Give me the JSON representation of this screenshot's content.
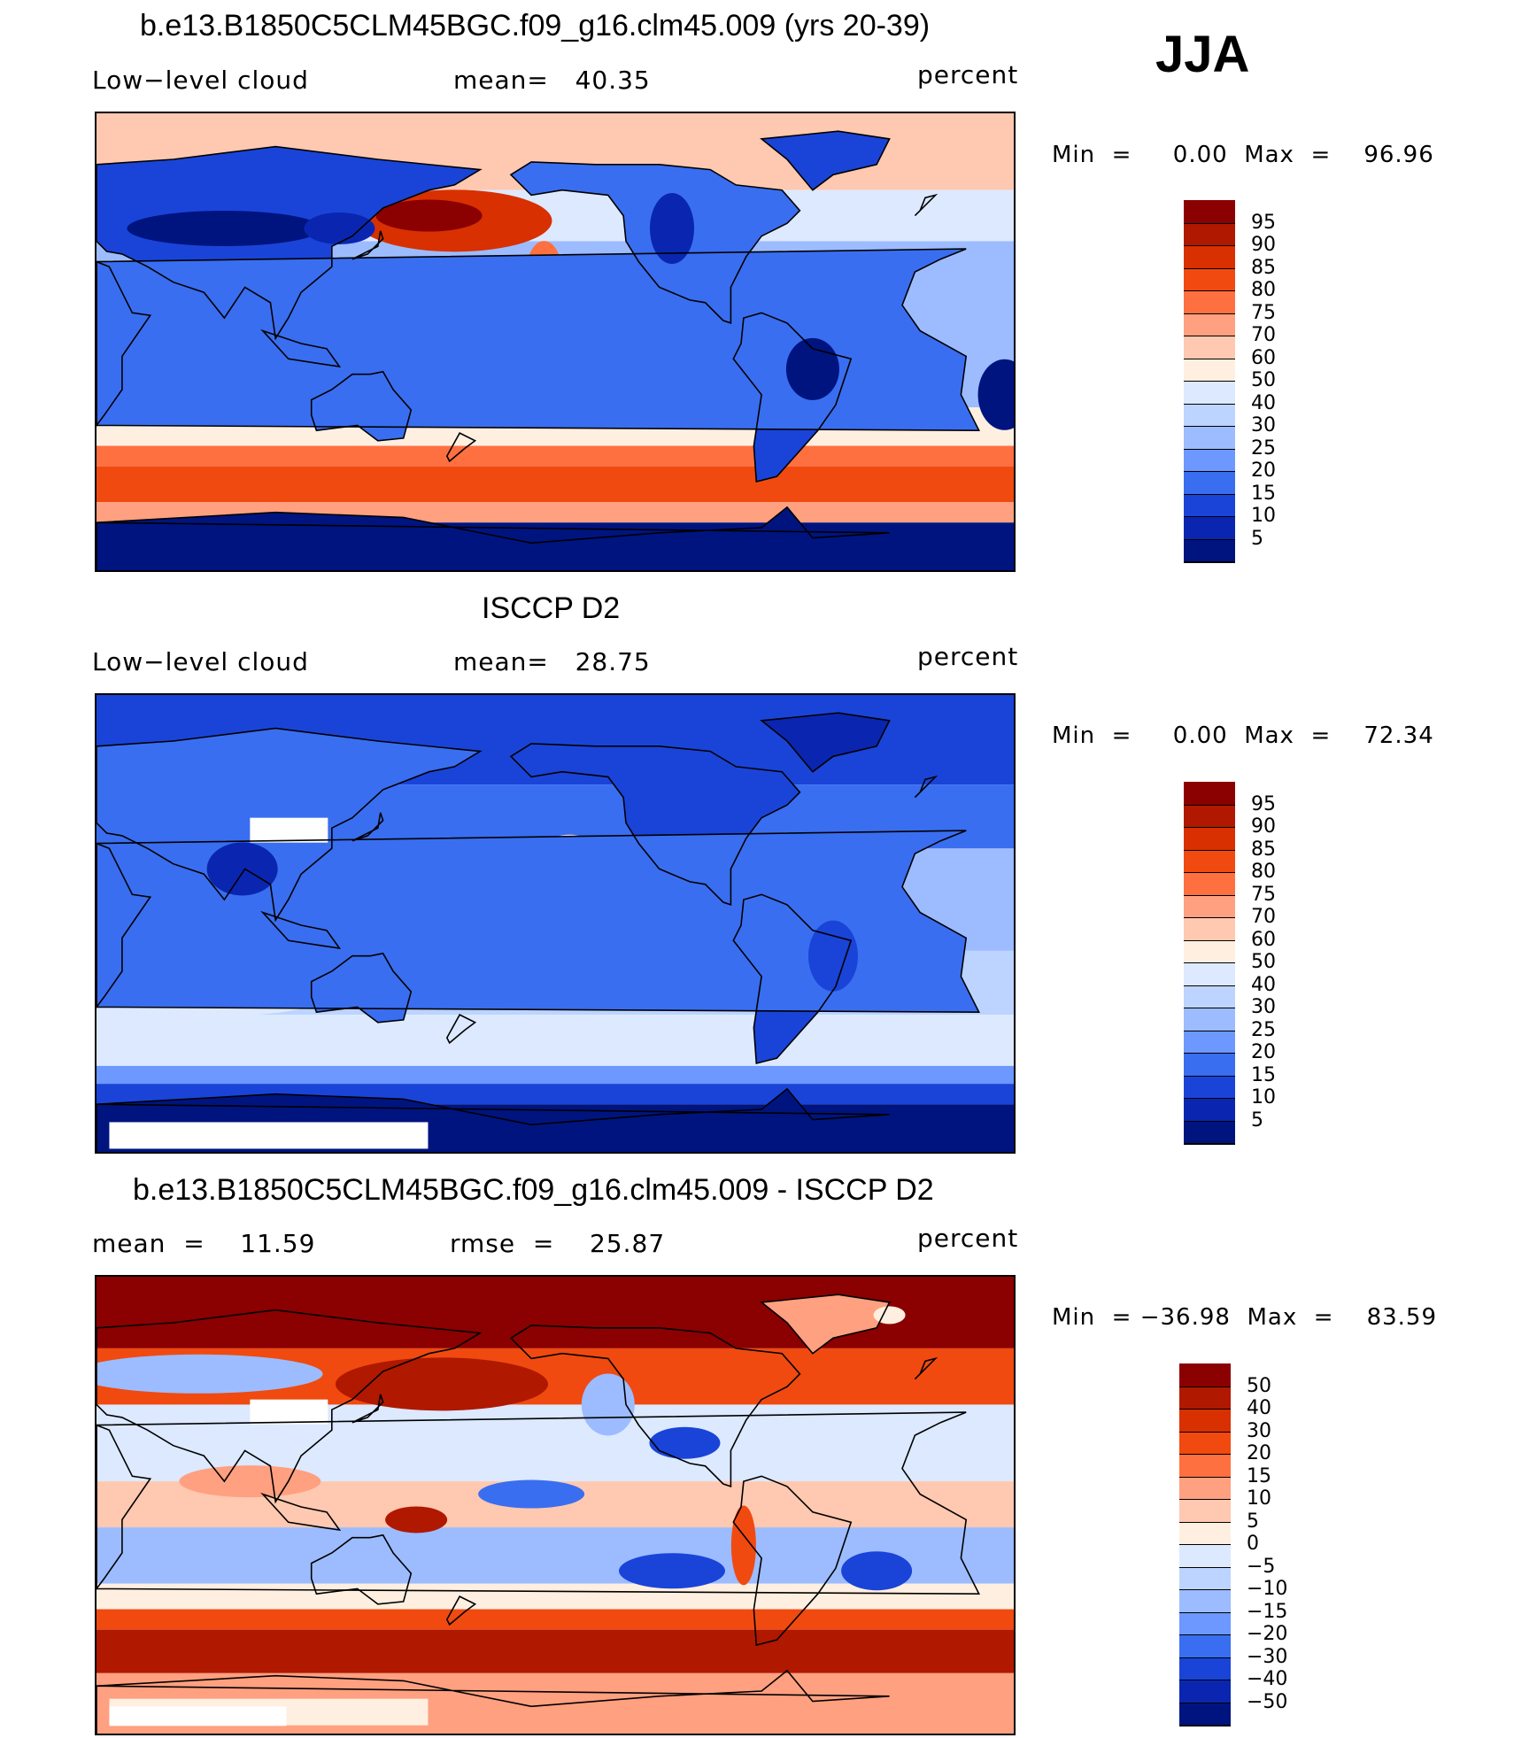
{
  "season": "JJA",
  "panels": [
    {
      "title": "b.e13.B1850C5CLM45BGC.f09_g16.clm45.009 (yrs 20-39)",
      "left_label": "Low−level cloud",
      "mid_label": "mean=   40.35",
      "right_label": "percent",
      "minmax": "Min  =     0.00  Max  =    96.96",
      "colorbar": {
        "labels": [
          "95",
          "90",
          "85",
          "80",
          "75",
          "70",
          "60",
          "50",
          "40",
          "30",
          "25",
          "20",
          "15",
          "10",
          "5"
        ],
        "colors": [
          "#8b0000",
          "#b01800",
          "#d83000",
          "#f04a10",
          "#ff7040",
          "#ffa080",
          "#ffc8b0",
          "#ffefe0",
          "#dce9ff",
          "#bcd4ff",
          "#9cbcff",
          "#6c98ff",
          "#3a6ef0",
          "#1a44d8",
          "#0a26b0",
          "#001480"
        ]
      },
      "field": "model"
    },
    {
      "title": "ISCCP D2",
      "left_label": "Low−level cloud",
      "mid_label": "mean=   28.75",
      "right_label": "percent",
      "minmax": "Min  =     0.00  Max  =    72.34",
      "colorbar": {
        "labels": [
          "95",
          "90",
          "85",
          "80",
          "75",
          "70",
          "60",
          "50",
          "40",
          "30",
          "25",
          "20",
          "15",
          "10",
          "5"
        ],
        "colors": [
          "#8b0000",
          "#b01800",
          "#d83000",
          "#f04a10",
          "#ff7040",
          "#ffa080",
          "#ffc8b0",
          "#ffefe0",
          "#dce9ff",
          "#bcd4ff",
          "#9cbcff",
          "#6c98ff",
          "#3a6ef0",
          "#1a44d8",
          "#0a26b0",
          "#001480"
        ]
      },
      "field": "obs"
    },
    {
      "title": "b.e13.B1850C5CLM45BGC.f09_g16.clm45.009 - ISCCP D2",
      "left_label": "mean  =    11.59",
      "mid_label": "rmse  =    25.87",
      "right_label": "percent",
      "minmax": "Min  = −36.98  Max  =    83.59",
      "colorbar": {
        "labels": [
          "50",
          "40",
          "30",
          "20",
          "15",
          "10",
          "5",
          "0",
          "−5",
          "−10",
          "−15",
          "−20",
          "−30",
          "−40",
          "−50"
        ],
        "colors": [
          "#8b0000",
          "#b01800",
          "#d83000",
          "#f04a10",
          "#ff7040",
          "#ffa080",
          "#ffc8b0",
          "#ffefe0",
          "#dce9ff",
          "#bcd4ff",
          "#9cbcff",
          "#6c98ff",
          "#3a6ef0",
          "#1a44d8",
          "#0a26b0",
          "#001480"
        ]
      },
      "field": "diff"
    }
  ]
}
